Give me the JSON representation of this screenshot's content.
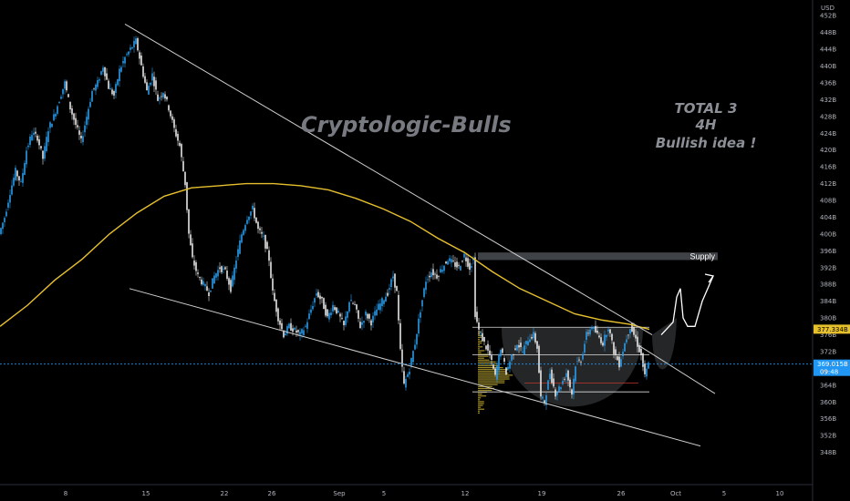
{
  "chart_data": {
    "type": "line",
    "title": "",
    "watermark": "Cryptologic-Bulls",
    "note_lines": [
      "TOTAL 3",
      "4H",
      "Bullish idea !"
    ],
    "currency_label": "USD",
    "y_ticks": [
      "452B",
      "448B",
      "444B",
      "440B",
      "436B",
      "432B",
      "428B",
      "424B",
      "420B",
      "416B",
      "412B",
      "408B",
      "404B",
      "400B",
      "396B",
      "392B",
      "388B",
      "384B",
      "380B",
      "376B",
      "372B",
      "368B",
      "364B",
      "360B",
      "356B",
      "352B",
      "348B"
    ],
    "x_ticks": [
      "8",
      "15",
      "22",
      "26",
      "Sep",
      "5",
      "12",
      "19",
      "26",
      "Oct",
      "5",
      "10"
    ],
    "ylim": [
      344,
      454
    ],
    "price_series": [
      [
        0,
        400
      ],
      [
        6,
        404
      ],
      [
        12,
        410
      ],
      [
        18,
        415
      ],
      [
        24,
        412
      ],
      [
        30,
        420
      ],
      [
        36,
        424
      ],
      [
        42,
        423
      ],
      [
        48,
        418
      ],
      [
        54,
        425
      ],
      [
        60,
        428
      ],
      [
        66,
        432
      ],
      [
        72,
        436
      ],
      [
        78,
        430
      ],
      [
        84,
        426
      ],
      [
        90,
        422
      ],
      [
        96,
        428
      ],
      [
        102,
        434
      ],
      [
        108,
        436
      ],
      [
        114,
        440
      ],
      [
        120,
        435
      ],
      [
        126,
        433
      ],
      [
        132,
        439
      ],
      [
        138,
        442
      ],
      [
        144,
        444
      ],
      [
        150,
        446
      ],
      [
        156,
        440
      ],
      [
        162,
        434
      ],
      [
        168,
        438
      ],
      [
        174,
        432
      ],
      [
        180,
        434
      ],
      [
        186,
        430
      ],
      [
        192,
        425
      ],
      [
        198,
        421
      ],
      [
        204,
        412
      ],
      [
        208,
        400
      ],
      [
        212,
        394
      ],
      [
        218,
        390
      ],
      [
        224,
        388
      ],
      [
        230,
        386
      ],
      [
        236,
        390
      ],
      [
        242,
        392
      ],
      [
        248,
        391
      ],
      [
        254,
        387
      ],
      [
        260,
        394
      ],
      [
        266,
        400
      ],
      [
        272,
        404
      ],
      [
        278,
        406
      ],
      [
        284,
        401
      ],
      [
        290,
        399
      ],
      [
        296,
        394
      ],
      [
        300,
        386
      ],
      [
        306,
        380
      ],
      [
        312,
        376
      ],
      [
        318,
        378
      ],
      [
        324,
        377
      ],
      [
        330,
        376
      ],
      [
        336,
        378
      ],
      [
        342,
        382
      ],
      [
        348,
        386
      ],
      [
        354,
        384
      ],
      [
        360,
        380
      ],
      [
        366,
        383
      ],
      [
        372,
        381
      ],
      [
        378,
        378
      ],
      [
        384,
        384
      ],
      [
        390,
        383
      ],
      [
        396,
        378
      ],
      [
        402,
        381
      ],
      [
        408,
        379
      ],
      [
        414,
        382
      ],
      [
        420,
        384
      ],
      [
        426,
        386
      ],
      [
        432,
        390
      ],
      [
        436,
        386
      ],
      [
        440,
        372
      ],
      [
        444,
        364
      ],
      [
        450,
        368
      ],
      [
        456,
        374
      ],
      [
        462,
        382
      ],
      [
        468,
        389
      ],
      [
        474,
        391
      ],
      [
        480,
        390
      ],
      [
        486,
        392
      ],
      [
        492,
        394
      ],
      [
        498,
        393
      ],
      [
        504,
        392
      ],
      [
        510,
        395
      ],
      [
        516,
        392
      ],
      [
        520,
        394
      ],
      [
        522,
        381
      ],
      [
        526,
        377
      ],
      [
        532,
        374
      ],
      [
        538,
        371
      ],
      [
        544,
        366
      ],
      [
        550,
        373
      ],
      [
        556,
        367
      ],
      [
        562,
        371
      ],
      [
        568,
        374
      ],
      [
        574,
        372
      ],
      [
        580,
        375
      ],
      [
        586,
        376
      ],
      [
        590,
        373
      ],
      [
        594,
        361
      ],
      [
        598,
        360
      ],
      [
        604,
        367
      ],
      [
        610,
        362
      ],
      [
        616,
        364
      ],
      [
        622,
        367
      ],
      [
        628,
        362
      ],
      [
        632,
        369
      ],
      [
        638,
        370
      ],
      [
        644,
        376
      ],
      [
        650,
        378
      ],
      [
        656,
        376
      ],
      [
        662,
        374
      ],
      [
        668,
        378
      ],
      [
        674,
        372
      ],
      [
        680,
        369
      ],
      [
        686,
        374
      ],
      [
        692,
        378
      ],
      [
        698,
        375
      ],
      [
        704,
        371
      ],
      [
        708,
        366
      ],
      [
        712,
        369
      ]
    ],
    "ma_series": [
      [
        0,
        378
      ],
      [
        30,
        383
      ],
      [
        60,
        389
      ],
      [
        90,
        394
      ],
      [
        120,
        400
      ],
      [
        150,
        405
      ],
      [
        180,
        409
      ],
      [
        210,
        411
      ],
      [
        240,
        411.5
      ],
      [
        270,
        412
      ],
      [
        300,
        412
      ],
      [
        330,
        411.5
      ],
      [
        360,
        410.5
      ],
      [
        390,
        408.5
      ],
      [
        420,
        406
      ],
      [
        450,
        403
      ],
      [
        480,
        399
      ],
      [
        510,
        395.5
      ],
      [
        540,
        391
      ],
      [
        570,
        387
      ],
      [
        600,
        384
      ],
      [
        630,
        381
      ],
      [
        660,
        379.5
      ],
      [
        690,
        378.5
      ],
      [
        712,
        377.3
      ]
    ],
    "trendlines": [
      {
        "from": [
          137,
          450
        ],
        "to": [
          715,
          376
        ]
      },
      {
        "from": [
          142,
          387
        ],
        "to": [
          768,
          349.5
        ]
      },
      {
        "from": [
          700,
          373.5
        ],
        "to": [
          784,
          362
        ]
      }
    ],
    "supply_zone": {
      "label": "Supply",
      "from_x": 524,
      "to_x": 787,
      "y_low": 393.8,
      "y_high": 395.6
    },
    "levels": [
      {
        "y": 377.8,
        "from_x": 518,
        "to_x": 712
      },
      {
        "y": 371.2,
        "from_x": 518,
        "to_x": 712
      },
      {
        "y": 362.4,
        "from_x": 518,
        "to_x": 712
      },
      {
        "y": 364.5,
        "from_x": 575,
        "to_x": 700
      }
    ],
    "projection": [
      [
        725,
        376
      ],
      [
        738,
        379
      ],
      [
        742,
        385
      ],
      [
        746,
        387
      ],
      [
        749,
        380
      ],
      [
        754,
        378
      ],
      [
        762,
        378
      ],
      [
        770,
        384
      ],
      [
        782,
        390
      ]
    ],
    "current_ma": {
      "label": "377.334B",
      "y": 377.334,
      "color": "#e6c02c"
    },
    "current_price": {
      "label": "369.015B",
      "sublabel": "09:48",
      "y": 369.015,
      "color": "#2196f3"
    }
  },
  "colors": {
    "background": "#000000",
    "candle_up": "#2b9be8",
    "candle_down": "#e6e6e6",
    "ma": "#e6c02c",
    "trendline": "#cfcfcf",
    "supply": "#4a4e52",
    "volume_profile": "#c8b33a"
  }
}
